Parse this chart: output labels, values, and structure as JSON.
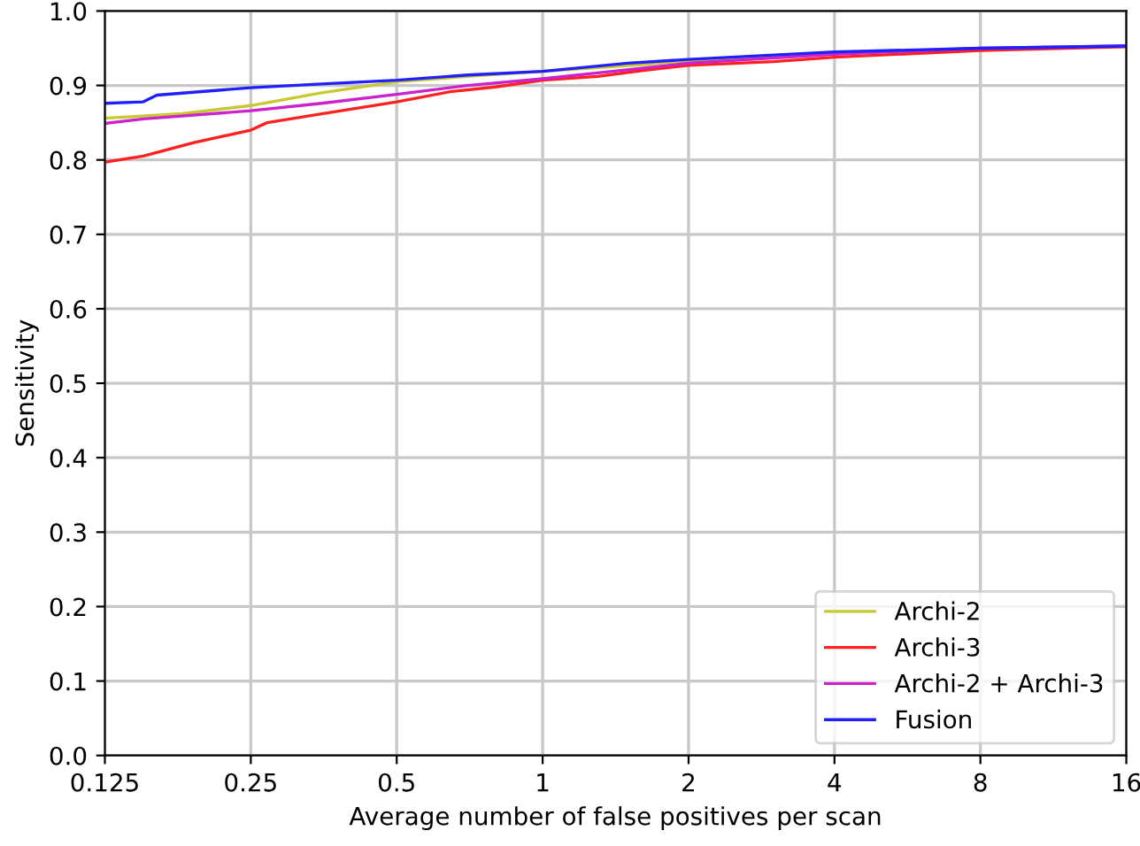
{
  "chart_data": {
    "type": "line",
    "xlabel": "Average number of false positives per scan",
    "ylabel": "Sensitivity",
    "log": "x",
    "grid": true,
    "legend": "bottom right",
    "xlim": [
      0.125,
      16
    ],
    "xticks": [
      0.125,
      0.25,
      0.5,
      1,
      2,
      4,
      8,
      16
    ],
    "ylim": [
      0,
      1
    ],
    "yticks": [
      {
        "value": 0,
        "label": "0.0"
      },
      {
        "value": 0.1,
        "label": "0.1"
      },
      {
        "value": 0.2,
        "label": "0.2"
      },
      {
        "value": 0.3,
        "label": "0.3"
      },
      {
        "value": 0.4,
        "label": "0.4"
      },
      {
        "value": 0.5,
        "label": "0.5"
      },
      {
        "value": 0.6,
        "label": "0.6"
      },
      {
        "value": 0.7,
        "label": "0.7"
      },
      {
        "value": 0.8,
        "label": "0.8"
      },
      {
        "value": 0.9,
        "label": "0.9"
      },
      {
        "value": 1,
        "label": "1.0"
      }
    ],
    "series": [
      {
        "name": "Archi-2",
        "color": "#c8c832",
        "x": [
          0.125,
          0.18,
          0.25,
          0.35,
          0.5,
          0.7,
          1,
          1.6,
          2,
          4
        ],
        "values": [
          0.856,
          0.862,
          0.873,
          0.89,
          0.905,
          0.912,
          0.919,
          0.928,
          0.933,
          0.943
        ]
      },
      {
        "name": "Archi-3",
        "color": "#ff2020",
        "x": [
          0.125,
          0.15,
          0.19,
          0.25,
          0.27,
          0.35,
          0.5,
          0.65,
          0.8,
          1,
          1.3,
          1.6,
          2,
          3,
          4,
          8,
          16
        ],
        "values": [
          0.797,
          0.805,
          0.823,
          0.84,
          0.85,
          0.862,
          0.878,
          0.892,
          0.898,
          0.907,
          0.912,
          0.92,
          0.927,
          0.932,
          0.938,
          0.947,
          0.952
        ]
      },
      {
        "name": "Archi-2 + Archi-3",
        "color": "#cc22cc",
        "x": [
          0.125,
          0.15,
          0.25,
          0.35,
          0.5,
          0.7,
          1,
          1.6,
          2,
          4,
          8,
          16
        ],
        "values": [
          0.849,
          0.855,
          0.866,
          0.876,
          0.888,
          0.9,
          0.909,
          0.923,
          0.93,
          0.942,
          0.95,
          0.953
        ]
      },
      {
        "name": "Fusion",
        "color": "#2020ff",
        "x": [
          0.125,
          0.15,
          0.16,
          0.25,
          0.35,
          0.5,
          0.7,
          1,
          1.5,
          2,
          4,
          8,
          16
        ],
        "values": [
          0.876,
          0.878,
          0.887,
          0.897,
          0.902,
          0.907,
          0.914,
          0.919,
          0.93,
          0.935,
          0.945,
          0.95,
          0.953
        ]
      }
    ]
  }
}
